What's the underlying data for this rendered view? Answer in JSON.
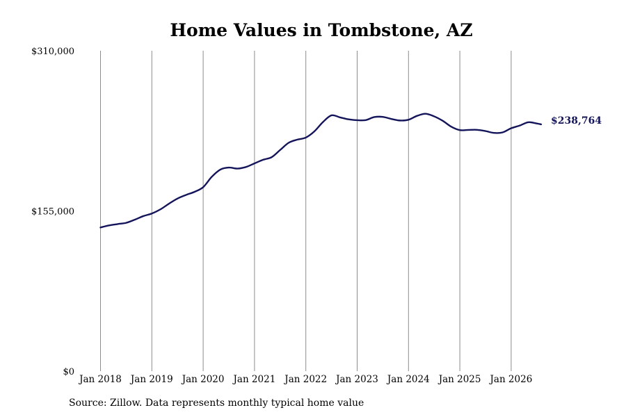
{
  "chart_data": {
    "type": "line",
    "title": "Home Values in Tombstone, AZ",
    "xlabel": "",
    "ylabel": "",
    "ylim": [
      0,
      310000
    ],
    "y_ticks": [
      {
        "value": 0,
        "label": "$0"
      },
      {
        "value": 155000,
        "label": "$155,000"
      },
      {
        "value": 310000,
        "label": "$310,000"
      }
    ],
    "x_range": [
      "2018-01",
      "2026-08"
    ],
    "x_ticks": [
      {
        "date": "2018-01",
        "label": "Jan 2018"
      },
      {
        "date": "2019-01",
        "label": "Jan 2019"
      },
      {
        "date": "2020-01",
        "label": "Jan 2020"
      },
      {
        "date": "2021-01",
        "label": "Jan 2021"
      },
      {
        "date": "2022-01",
        "label": "Jan 2022"
      },
      {
        "date": "2023-01",
        "label": "Jan 2023"
      },
      {
        "date": "2024-01",
        "label": "Jan 2024"
      },
      {
        "date": "2025-01",
        "label": "Jan 2025"
      },
      {
        "date": "2026-01",
        "label": "Jan 2026"
      }
    ],
    "grid": {
      "vertical": true,
      "horizontal": false
    },
    "line_color": "#14145a",
    "series": [
      {
        "points": [
          [
            "2018-01",
            139000
          ],
          [
            "2018-03",
            141000
          ],
          [
            "2018-05",
            142300
          ],
          [
            "2018-07",
            143500
          ],
          [
            "2018-09",
            146500
          ],
          [
            "2018-11",
            150000
          ],
          [
            "2019-01",
            152500
          ],
          [
            "2019-03",
            156500
          ],
          [
            "2019-05",
            162000
          ],
          [
            "2019-07",
            167000
          ],
          [
            "2019-09",
            170500
          ],
          [
            "2019-11",
            173500
          ],
          [
            "2020-01",
            178000
          ],
          [
            "2020-03",
            188000
          ],
          [
            "2020-05",
            195000
          ],
          [
            "2020-07",
            197000
          ],
          [
            "2020-09",
            196000
          ],
          [
            "2020-11",
            197500
          ],
          [
            "2021-01",
            201000
          ],
          [
            "2021-03",
            204500
          ],
          [
            "2021-05",
            207000
          ],
          [
            "2021-07",
            214000
          ],
          [
            "2021-09",
            221000
          ],
          [
            "2021-11",
            224000
          ],
          [
            "2022-01",
            226000
          ],
          [
            "2022-03",
            232000
          ],
          [
            "2022-05",
            241000
          ],
          [
            "2022-07",
            247500
          ],
          [
            "2022-09",
            245500
          ],
          [
            "2022-11",
            243600
          ],
          [
            "2023-01",
            242800
          ],
          [
            "2023-03",
            242900
          ],
          [
            "2023-05",
            245800
          ],
          [
            "2023-07",
            246000
          ],
          [
            "2023-09",
            244000
          ],
          [
            "2023-11",
            242500
          ],
          [
            "2024-01",
            243200
          ],
          [
            "2024-03",
            247000
          ],
          [
            "2024-05",
            249000
          ],
          [
            "2024-07",
            246500
          ],
          [
            "2024-09",
            242200
          ],
          [
            "2024-11",
            236500
          ],
          [
            "2025-01",
            233200
          ],
          [
            "2025-03",
            233400
          ],
          [
            "2025-05",
            233500
          ],
          [
            "2025-07",
            232300
          ],
          [
            "2025-09",
            230500
          ],
          [
            "2025-11",
            231000
          ],
          [
            "2026-01",
            235000
          ],
          [
            "2026-03",
            237600
          ],
          [
            "2026-05",
            240800
          ],
          [
            "2026-07",
            239600
          ],
          [
            "2026-08",
            238764
          ]
        ]
      }
    ],
    "end_label": "$238,764",
    "source_note": "Source: Zillow. Data represents monthly typical home value"
  }
}
